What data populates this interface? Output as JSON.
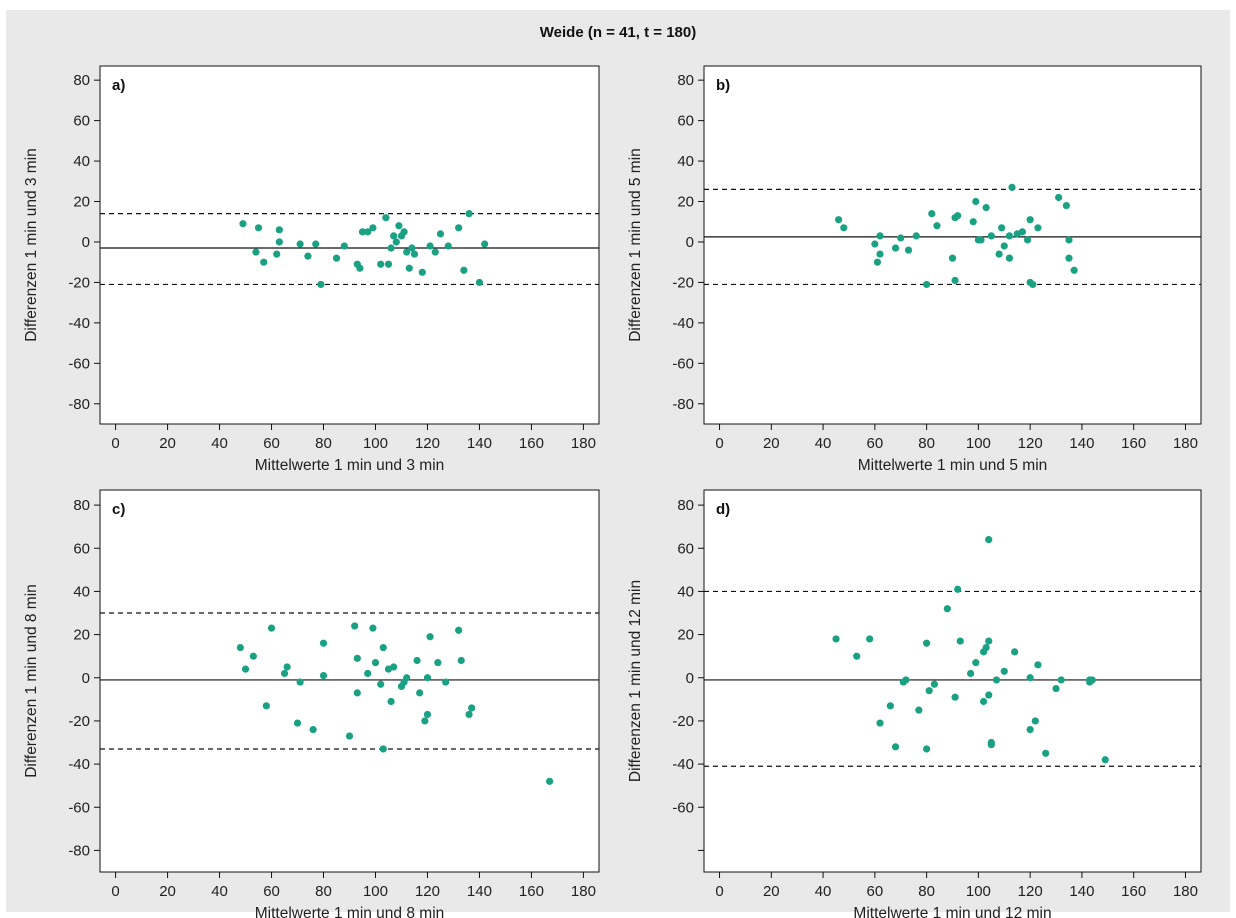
{
  "figure": {
    "title": "Weide (n = 41, t = 180)"
  },
  "style": {
    "point_color": "#1aa184",
    "background": "#e9e9e9",
    "plot_background": "#ffffff",
    "line_color": "#111111"
  },
  "chart_data": [
    {
      "type": "scatter",
      "panel_label": "a)",
      "xlabel": "Mittelwerte 1 min und 3 min",
      "ylabel": "Differenzen 1 min und 3 min",
      "xlim": [
        -6,
        186
      ],
      "ylim": [
        -90,
        87
      ],
      "x_ticks": [
        0,
        20,
        40,
        60,
        80,
        100,
        120,
        140,
        160,
        180
      ],
      "x_tick_labels": [
        "0",
        "20",
        "40",
        "60",
        "80",
        "100",
        "120",
        "140",
        "160",
        "180"
      ],
      "y_ticks": [
        -80,
        -60,
        -40,
        -20,
        0,
        20,
        40,
        60,
        80
      ],
      "y_tick_labels": [
        "-80",
        "-60",
        "-40",
        "-20",
        "0",
        "20",
        "40",
        "60",
        "80"
      ],
      "mean_line": -3,
      "upper_loa": 14,
      "lower_loa": -21,
      "points": [
        [
          49,
          9
        ],
        [
          54,
          -5
        ],
        [
          55,
          7
        ],
        [
          57,
          -10
        ],
        [
          62,
          -6
        ],
        [
          63,
          6
        ],
        [
          63,
          0
        ],
        [
          71,
          -1
        ],
        [
          74,
          -7
        ],
        [
          77,
          -1
        ],
        [
          79,
          -21
        ],
        [
          85,
          -8
        ],
        [
          88,
          -2
        ],
        [
          93,
          -11
        ],
        [
          94,
          -13
        ],
        [
          95,
          5
        ],
        [
          97,
          5
        ],
        [
          99,
          7
        ],
        [
          102,
          -11
        ],
        [
          104,
          12
        ],
        [
          105,
          -11
        ],
        [
          106,
          -3
        ],
        [
          107,
          3
        ],
        [
          108,
          0
        ],
        [
          109,
          8
        ],
        [
          110,
          3
        ],
        [
          111,
          5
        ],
        [
          112,
          -5
        ],
        [
          113,
          -13
        ],
        [
          114,
          -3
        ],
        [
          115,
          -6
        ],
        [
          118,
          -15
        ],
        [
          121,
          -2
        ],
        [
          123,
          -5
        ],
        [
          125,
          4
        ],
        [
          128,
          -2
        ],
        [
          132,
          7
        ],
        [
          134,
          -14
        ],
        [
          136,
          14
        ],
        [
          140,
          -20
        ],
        [
          142,
          -1
        ]
      ]
    },
    {
      "type": "scatter",
      "panel_label": "b)",
      "xlabel": "Mittelwerte 1 min und 5 min",
      "ylabel": "Differenzen 1 min und 5 min",
      "xlim": [
        -6,
        186
      ],
      "ylim": [
        -90,
        87
      ],
      "x_ticks": [
        0,
        20,
        40,
        60,
        80,
        100,
        120,
        140,
        160,
        180
      ],
      "x_tick_labels": [
        "0",
        "20",
        "40",
        "60",
        "80",
        "100",
        "120",
        "140",
        "160",
        "180"
      ],
      "y_ticks": [
        -80,
        -60,
        -40,
        -20,
        0,
        20,
        40,
        60,
        80
      ],
      "y_tick_labels": [
        "-80",
        "-60",
        "-40",
        "-20",
        "0",
        "20",
        "40",
        "60",
        "80"
      ],
      "mean_line": 2.5,
      "upper_loa": 26,
      "lower_loa": -21,
      "points": [
        [
          46,
          11
        ],
        [
          48,
          7
        ],
        [
          60,
          -1
        ],
        [
          61,
          -10
        ],
        [
          62,
          3
        ],
        [
          62,
          -6
        ],
        [
          68,
          -3
        ],
        [
          70,
          2
        ],
        [
          73,
          -4
        ],
        [
          76,
          3
        ],
        [
          80,
          -21
        ],
        [
          82,
          14
        ],
        [
          84,
          8
        ],
        [
          90,
          -8
        ],
        [
          91,
          12
        ],
        [
          91,
          -19
        ],
        [
          92,
          13
        ],
        [
          98,
          10
        ],
        [
          99,
          20
        ],
        [
          100,
          1
        ],
        [
          101,
          1
        ],
        [
          103,
          17
        ],
        [
          105,
          3
        ],
        [
          108,
          -6
        ],
        [
          109,
          7
        ],
        [
          110,
          -2
        ],
        [
          112,
          -8
        ],
        [
          112,
          3
        ],
        [
          113,
          27
        ],
        [
          115,
          4
        ],
        [
          117,
          5
        ],
        [
          119,
          1
        ],
        [
          120,
          -20
        ],
        [
          120,
          11
        ],
        [
          121,
          -21
        ],
        [
          123,
          7
        ],
        [
          131,
          22
        ],
        [
          134,
          18
        ],
        [
          135,
          1
        ],
        [
          135,
          -8
        ],
        [
          137,
          -14
        ]
      ]
    },
    {
      "type": "scatter",
      "panel_label": "c)",
      "xlabel": "Mittelwerte 1 min und 8 min",
      "ylabel": "Differenzen 1 min und 8 min",
      "xlim": [
        -6,
        186
      ],
      "ylim": [
        -90,
        87
      ],
      "x_ticks": [
        0,
        20,
        40,
        60,
        80,
        100,
        120,
        140,
        160,
        180
      ],
      "x_tick_labels": [
        "0",
        "20",
        "40",
        "60",
        "80",
        "100",
        "120",
        "140",
        "160",
        "180"
      ],
      "y_ticks": [
        -80,
        -60,
        -40,
        -20,
        0,
        20,
        40,
        60,
        80
      ],
      "y_tick_labels": [
        "-80",
        "-60",
        "-40",
        "-20",
        "0",
        "20",
        "40",
        "60",
        "80"
      ],
      "mean_line": -1,
      "upper_loa": 30,
      "lower_loa": -33,
      "points": [
        [
          48,
          14
        ],
        [
          50,
          4
        ],
        [
          53,
          10
        ],
        [
          58,
          -13
        ],
        [
          60,
          23
        ],
        [
          65,
          2
        ],
        [
          66,
          5
        ],
        [
          70,
          -21
        ],
        [
          71,
          -2
        ],
        [
          76,
          -24
        ],
        [
          80,
          16
        ],
        [
          80,
          1
        ],
        [
          90,
          -27
        ],
        [
          92,
          24
        ],
        [
          93,
          9
        ],
        [
          93,
          -7
        ],
        [
          97,
          2
        ],
        [
          99,
          23
        ],
        [
          100,
          7
        ],
        [
          102,
          -3
        ],
        [
          103,
          14
        ],
        [
          103,
          -33
        ],
        [
          105,
          4
        ],
        [
          106,
          -11
        ],
        [
          107,
          5
        ],
        [
          110,
          -4
        ],
        [
          111,
          -2
        ],
        [
          112,
          0
        ],
        [
          116,
          8
        ],
        [
          117,
          -7
        ],
        [
          119,
          -20
        ],
        [
          120,
          -17
        ],
        [
          120,
          0
        ],
        [
          121,
          19
        ],
        [
          124,
          7
        ],
        [
          127,
          -2
        ],
        [
          132,
          22
        ],
        [
          133,
          8
        ],
        [
          136,
          -17
        ],
        [
          137,
          -14
        ],
        [
          167,
          -48
        ]
      ]
    },
    {
      "type": "scatter",
      "panel_label": "d)",
      "xlabel": "Mittelwerte 1 min und 12 min",
      "ylabel": "Differenzen 1 min und 12 min",
      "xlim": [
        -6,
        186
      ],
      "ylim": [
        -90,
        87
      ],
      "x_ticks": [
        0,
        20,
        40,
        60,
        80,
        100,
        120,
        140,
        160,
        180
      ],
      "x_tick_labels": [
        "0",
        "20",
        "40",
        "60",
        "80",
        "100",
        "120",
        "140",
        "160",
        "180"
      ],
      "y_ticks": [
        -80,
        -60,
        -40,
        -20,
        0,
        20,
        40,
        60,
        80
      ],
      "y_tick_labels": [
        "",
        "-60",
        "-40",
        "-20",
        "0",
        "20",
        "40",
        "60",
        "80"
      ],
      "mean_line": -1,
      "upper_loa": 40,
      "lower_loa": -41,
      "points": [
        [
          45,
          18
        ],
        [
          53,
          10
        ],
        [
          58,
          18
        ],
        [
          62,
          -21
        ],
        [
          66,
          -13
        ],
        [
          68,
          -32
        ],
        [
          71,
          -2
        ],
        [
          72,
          -1
        ],
        [
          77,
          -15
        ],
        [
          80,
          16
        ],
        [
          80,
          -33
        ],
        [
          81,
          -6
        ],
        [
          83,
          -3
        ],
        [
          88,
          32
        ],
        [
          91,
          -9
        ],
        [
          92,
          41
        ],
        [
          93,
          17
        ],
        [
          97,
          2
        ],
        [
          99,
          7
        ],
        [
          102,
          -11
        ],
        [
          102,
          12
        ],
        [
          103,
          14
        ],
        [
          104,
          -8
        ],
        [
          104,
          17
        ],
        [
          104,
          64
        ],
        [
          105,
          -31
        ],
        [
          107,
          -1
        ],
        [
          110,
          3
        ],
        [
          114,
          12
        ],
        [
          120,
          -24
        ],
        [
          120,
          0
        ],
        [
          122,
          -20
        ],
        [
          123,
          6
        ],
        [
          126,
          -35
        ],
        [
          130,
          -5
        ],
        [
          132,
          -1
        ],
        [
          143,
          -2
        ],
        [
          143,
          -1
        ],
        [
          144,
          -1
        ],
        [
          149,
          -38
        ],
        [
          105,
          -30
        ]
      ]
    }
  ]
}
